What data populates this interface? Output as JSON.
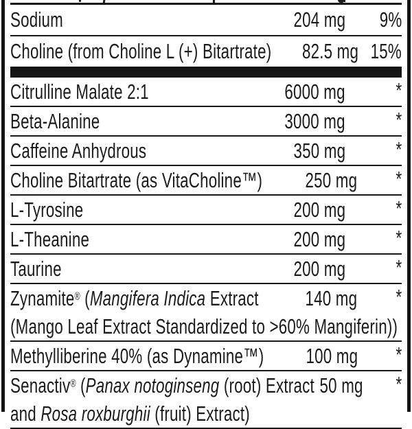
{
  "panel": {
    "rows": [
      {
        "type": "item",
        "name": [
          {
            "t": "Sodium"
          }
        ],
        "amount": "204 mg",
        "dv": "9%"
      },
      {
        "type": "item",
        "name": [
          {
            "t": "Choline (from Choline L (+) Bitartrate)"
          }
        ],
        "amount": "82.5 mg",
        "dv": "15%"
      },
      {
        "type": "divider"
      },
      {
        "type": "item",
        "name": [
          {
            "t": "Citrulline Malate 2:1"
          }
        ],
        "amount": "6000 mg",
        "dv": "*"
      },
      {
        "type": "item",
        "name": [
          {
            "t": "Beta-Alanine"
          }
        ],
        "amount": "3000 mg",
        "dv": "*"
      },
      {
        "type": "item",
        "name": [
          {
            "t": "Caffeine Anhydrous"
          }
        ],
        "amount": "350 mg",
        "dv": "*"
      },
      {
        "type": "item",
        "name": [
          {
            "t": "Choline Bitartrate (as VitaCholine™)"
          }
        ],
        "amount": "250 mg",
        "dv": "*"
      },
      {
        "type": "item",
        "name": [
          {
            "t": "L-Tyrosine"
          }
        ],
        "amount": "200 mg",
        "dv": "*"
      },
      {
        "type": "item",
        "name": [
          {
            "t": "L-Theanine"
          }
        ],
        "amount": "200 mg",
        "dv": "*"
      },
      {
        "type": "item",
        "name": [
          {
            "t": "Taurine"
          }
        ],
        "amount": "200 mg",
        "dv": "*"
      },
      {
        "type": "item",
        "name": [
          {
            "t": "Zynamite"
          },
          {
            "t": "®",
            "s": "sup"
          },
          {
            "t": " ("
          },
          {
            "t": "Mangifera Indica",
            "s": "i"
          },
          {
            "t": " Extract"
          }
        ],
        "name2": [
          {
            "t": "(Mango Leaf Extract Standardized to >60% Mangiferin))"
          }
        ],
        "amount": "140 mg",
        "dv": "*"
      },
      {
        "type": "item",
        "name": [
          {
            "t": "Methylliberine 40% (as Dynamine™)"
          }
        ],
        "amount": "100 mg",
        "dv": "*"
      },
      {
        "type": "item",
        "name": [
          {
            "t": "Senactiv"
          },
          {
            "t": "®",
            "s": "sup"
          },
          {
            "t": " ("
          },
          {
            "t": "Panax notoginseng",
            "s": "i"
          },
          {
            "t": " (root) Extract"
          }
        ],
        "name2": [
          {
            "t": "and "
          },
          {
            "t": "Rosa roxburghii",
            "s": "i"
          },
          {
            "t": " (fruit) Extract)"
          }
        ],
        "amount": "50 mg",
        "dv": "*"
      }
    ],
    "colors": {
      "ink": "#1b1b1b",
      "rule": "#171717",
      "bar": "#151515",
      "paper": "#ffffff"
    }
  }
}
